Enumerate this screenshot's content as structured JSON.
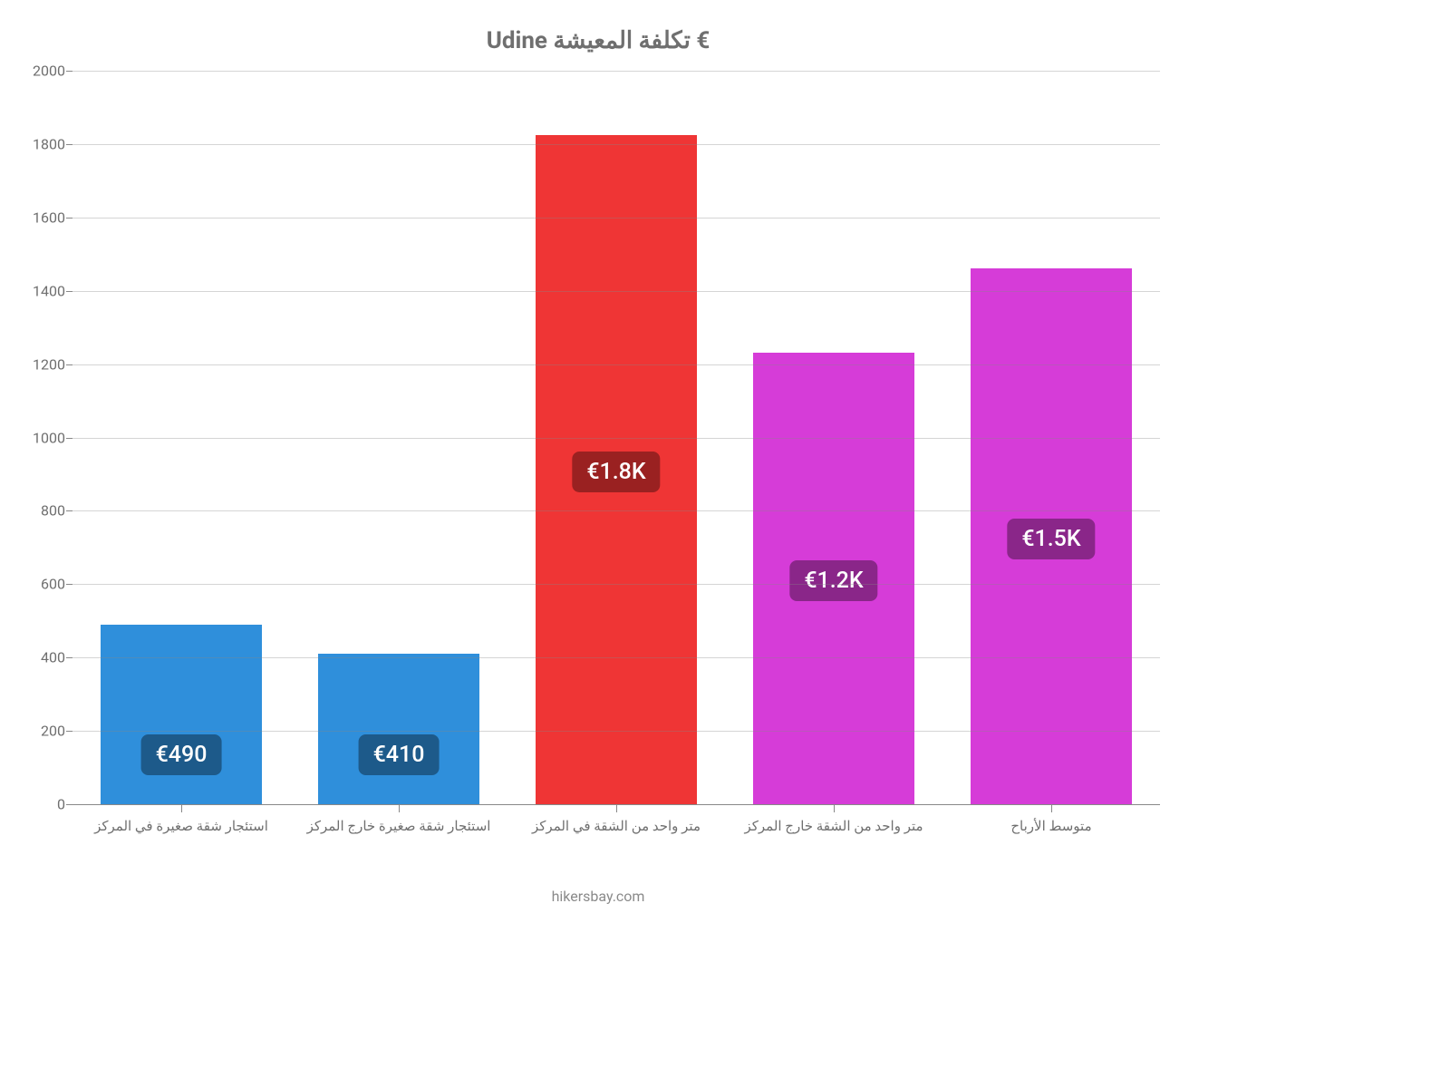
{
  "chart": {
    "type": "bar",
    "title": "€ تكلفة المعيشة Udine",
    "title_fontsize": 26,
    "title_color": "#6f6f6f",
    "background_color": "#ffffff",
    "attribution": "hikersbay.com",
    "ylim": [
      0,
      2000
    ],
    "ytick_step": 200,
    "yticks": [
      0,
      200,
      400,
      600,
      800,
      1000,
      1200,
      1400,
      1600,
      1800,
      2000
    ],
    "axis_color": "#888888",
    "grid_color": "#888888",
    "label_color": "#6f6f6f",
    "tick_fontsize": 16,
    "xtick_fontsize": 15,
    "bar_width": 0.74,
    "categories": [
      "استئجار شقة صغيرة في المركز",
      "استئجار شقة صغيرة خارج المركز",
      "متر واحد من الشقة في المركز",
      "متر واحد من الشقة خارج المركز",
      "متوسط الأرباح"
    ],
    "values": [
      490,
      410,
      1825,
      1230,
      1460
    ],
    "value_labels": [
      "€490",
      "€410",
      "€1.8K",
      "€1.2K",
      "€1.5K"
    ],
    "bar_colors": [
      "#2f8fdb",
      "#2f8fdb",
      "#ef3535",
      "#d63cd8",
      "#d63cd8"
    ],
    "label_bg_colors": [
      "#1d5a8a",
      "#1d5a8a",
      "#9a2121",
      "#8a2689",
      "#8a2689"
    ],
    "label_text_color": "#ffffff",
    "label_fontsize": 25,
    "label_position": [
      "low",
      "low",
      "mid",
      "mid",
      "mid"
    ]
  }
}
